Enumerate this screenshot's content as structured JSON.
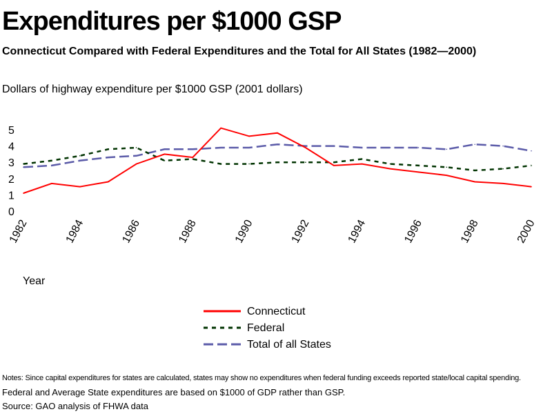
{
  "chart_data": {
    "type": "line",
    "title": "Expenditures per $1000 GSP",
    "subtitle": "Connecticut Compared with Federal Expenditures and the Total for All States (1982—2000)",
    "ylabel": "Dollars of highway expenditure per $1000 GSP (2001 dollars)",
    "xlabel": "Year",
    "x": [
      1982,
      1983,
      1984,
      1985,
      1986,
      1987,
      1988,
      1989,
      1990,
      1991,
      1992,
      1993,
      1994,
      1995,
      1996,
      1997,
      1998,
      1999,
      2000
    ],
    "xticks": [
      "1982",
      "1984",
      "1986",
      "1988",
      "1990",
      "1992",
      "1994",
      "1996",
      "1998",
      "2000"
    ],
    "yticks": [
      "0",
      "1",
      "2",
      "3",
      "4",
      "5"
    ],
    "ylim": [
      0,
      5
    ],
    "grid": false,
    "legend_position": "bottom-center",
    "series": [
      {
        "name": "Connecticut",
        "color": "#ff0000",
        "style": "solid",
        "values": [
          1.1,
          1.7,
          1.5,
          1.8,
          2.9,
          3.5,
          3.3,
          5.1,
          4.6,
          4.8,
          3.9,
          2.8,
          2.9,
          2.6,
          2.4,
          2.2,
          1.8,
          1.7,
          1.5
        ]
      },
      {
        "name": "Federal",
        "color": "#003300",
        "style": "dashed",
        "values": [
          2.9,
          3.1,
          3.4,
          3.8,
          3.9,
          3.1,
          3.2,
          2.9,
          2.9,
          3.0,
          3.0,
          3.0,
          3.2,
          2.9,
          2.8,
          2.7,
          2.5,
          2.6,
          2.8
        ]
      },
      {
        "name": "Total of all States",
        "color": "#5a5aa8",
        "style": "dashed",
        "values": [
          2.7,
          2.8,
          3.1,
          3.3,
          3.4,
          3.8,
          3.8,
          3.9,
          3.9,
          4.1,
          4.0,
          4.0,
          3.9,
          3.9,
          3.9,
          3.8,
          4.1,
          4.0,
          3.7
        ]
      }
    ]
  },
  "notes": {
    "line1": "Notes: Since capital expenditures for states are calculated, states may show no expenditures when federal funding exceeds reported state/local capital spending.",
    "line2": "Federal and Average State expenditures are based on $1000 of GDP rather than GSP.",
    "source": "Source: GAO analysis of FHWA data"
  }
}
